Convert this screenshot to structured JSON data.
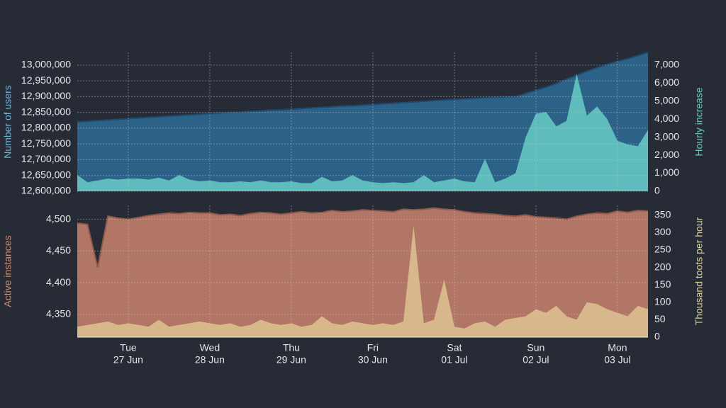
{
  "chart_data": [
    {
      "type": "area",
      "x": [
        0.375,
        0.5,
        0.625,
        0.75,
        0.875,
        1,
        1.125,
        1.25,
        1.375,
        1.5,
        1.625,
        1.75,
        1.875,
        2,
        2.125,
        2.25,
        2.375,
        2.5,
        2.625,
        2.75,
        2.875,
        3,
        3.125,
        3.25,
        3.375,
        3.5,
        3.625,
        3.75,
        3.875,
        4,
        4.125,
        4.25,
        4.375,
        4.5,
        4.625,
        4.75,
        4.875,
        5,
        5.125,
        5.25,
        5.375,
        5.5,
        5.625,
        5.75,
        5.875,
        6,
        6.125,
        6.25,
        6.375,
        6.5,
        6.625,
        6.75,
        6.875,
        7,
        7.125,
        7.25,
        7.375
      ],
      "xlim": [
        0.375,
        7.375
      ],
      "xticks": [
        1,
        2,
        3,
        4,
        5,
        6,
        7
      ],
      "ylim": [
        12600000,
        13040000
      ],
      "yticks": [
        {
          "value": 12600000,
          "label": "12,600,000"
        },
        {
          "value": 12650000,
          "label": "12,650,000"
        },
        {
          "value": 12700000,
          "label": "12,700,000"
        },
        {
          "value": 12750000,
          "label": "12,750,000"
        },
        {
          "value": 12800000,
          "label": "12,800,000"
        },
        {
          "value": 12850000,
          "label": "12,850,000"
        },
        {
          "value": 12900000,
          "label": "12,900,000"
        },
        {
          "value": 12950000,
          "label": "12,950,000"
        },
        {
          "value": 13000000,
          "label": "13,000,000"
        }
      ],
      "y2lim": [
        0,
        7700
      ],
      "y2ticks": [
        0,
        {
          "value": 1000,
          "label": "1,000"
        },
        {
          "value": 2000,
          "label": "2,000"
        },
        {
          "value": 3000,
          "label": "3,000"
        },
        {
          "value": 4000,
          "label": "4,000"
        },
        {
          "value": 5000,
          "label": "5,000"
        },
        {
          "value": 6000,
          "label": "6,000"
        },
        {
          "value": 7000,
          "label": "7,000"
        }
      ],
      "ylabel": "Number of users",
      "y2label": "Hourly increase",
      "ylabel_color": "#6fb6d6",
      "y2label_color": "#63c6b6",
      "grid": true,
      "series": [
        {
          "name": "Number of users",
          "color": "#2c6188",
          "line_color": "#1f4a6d",
          "values": [
            12820000,
            12822000,
            12824000,
            12826000,
            12828000,
            12830000,
            12832000,
            12834000,
            12836000,
            12838000,
            12840000,
            12842000,
            12844000,
            12846000,
            12848000,
            12850000,
            12851000,
            12853000,
            12855000,
            12857000,
            12858000,
            12860000,
            12862000,
            12864000,
            12866000,
            12868000,
            12870000,
            12871000,
            12873000,
            12875000,
            12877000,
            12879000,
            12881000,
            12883000,
            12885000,
            12887000,
            12889000,
            12891000,
            12893000,
            12895000,
            12897000,
            12898000,
            12899000,
            12900000,
            12910000,
            12920000,
            12930000,
            12942000,
            12955000,
            12968000,
            12980000,
            12992000,
            13002000,
            13012000,
            13020000,
            13030000,
            13040000
          ]
        },
        {
          "name": "Hourly increase",
          "color": "#5fbcbc",
          "axis": "y2",
          "values": [
            900,
            500,
            600,
            700,
            650,
            700,
            700,
            650,
            750,
            600,
            900,
            650,
            550,
            600,
            500,
            500,
            550,
            500,
            600,
            500,
            500,
            550,
            450,
            450,
            800,
            550,
            600,
            900,
            600,
            500,
            450,
            500,
            450,
            500,
            900,
            500,
            600,
            700,
            550,
            500,
            1800,
            500,
            700,
            1000,
            3000,
            4300,
            4400,
            3600,
            3900,
            6500,
            4200,
            4700,
            4000,
            2800,
            2600,
            2500,
            3400
          ]
        }
      ]
    },
    {
      "type": "area",
      "x": [
        0.375,
        0.5,
        0.625,
        0.75,
        0.875,
        1,
        1.125,
        1.25,
        1.375,
        1.5,
        1.625,
        1.75,
        1.875,
        2,
        2.125,
        2.25,
        2.375,
        2.5,
        2.625,
        2.75,
        2.875,
        3,
        3.125,
        3.25,
        3.375,
        3.5,
        3.625,
        3.75,
        3.875,
        4,
        4.125,
        4.25,
        4.375,
        4.5,
        4.625,
        4.75,
        4.875,
        5,
        5.125,
        5.25,
        5.375,
        5.5,
        5.625,
        5.75,
        5.875,
        6,
        6.125,
        6.25,
        6.375,
        6.5,
        6.625,
        6.75,
        6.875,
        7,
        7.125,
        7.25,
        7.375
      ],
      "xlim": [
        0.375,
        7.375
      ],
      "xticks": [
        {
          "value": 1,
          "label": "Tue",
          "date": "27 Jun"
        },
        {
          "value": 2,
          "label": "Wed",
          "date": "28 Jun"
        },
        {
          "value": 3,
          "label": "Thu",
          "date": "29 Jun"
        },
        {
          "value": 4,
          "label": "Fri",
          "date": "30 Jun"
        },
        {
          "value": 5,
          "label": "Sat",
          "date": "01 Jul"
        },
        {
          "value": 6,
          "label": "Sun",
          "date": "02 Jul"
        },
        {
          "value": 7,
          "label": "Mon",
          "date": "03 Jul"
        }
      ],
      "ylim": [
        4314,
        4522
      ],
      "yticks": [
        {
          "value": 4350,
          "label": "4,350"
        },
        {
          "value": 4400,
          "label": "4,400"
        },
        {
          "value": 4450,
          "label": "4,450"
        },
        {
          "value": 4500,
          "label": "4,500"
        }
      ],
      "y2lim": [
        0,
        378
      ],
      "y2ticks": [
        0,
        50,
        100,
        150,
        200,
        250,
        300,
        350
      ],
      "ylabel": "Active instances",
      "y2label": "Thousand toots per hour",
      "ylabel_color": "#d18c70",
      "y2label_color": "#d9cf90",
      "grid": true,
      "series": [
        {
          "name": "Active instances",
          "color": "#b27666",
          "line_color": "#8f5a4d",
          "values": [
            4494,
            4492,
            4424,
            4505,
            4502,
            4500,
            4503,
            4506,
            4508,
            4510,
            4509,
            4511,
            4510,
            4510,
            4507,
            4508,
            4506,
            4509,
            4511,
            4510,
            4508,
            4510,
            4512,
            4510,
            4511,
            4514,
            4512,
            4513,
            4515,
            4514,
            4513,
            4512,
            4516,
            4515,
            4516,
            4518,
            4516,
            4515,
            4512,
            4510,
            4509,
            4508,
            4506,
            4505,
            4507,
            4504,
            4503,
            4502,
            4500,
            4505,
            4508,
            4510,
            4509,
            4513,
            4511,
            4514,
            4513
          ]
        },
        {
          "name": "Thousand toots per hour",
          "color": "#d8b88a",
          "axis": "y2",
          "values": [
            30,
            35,
            40,
            45,
            35,
            40,
            35,
            30,
            50,
            30,
            35,
            40,
            45,
            40,
            35,
            40,
            30,
            35,
            50,
            40,
            35,
            40,
            30,
            35,
            60,
            40,
            35,
            45,
            40,
            35,
            40,
            35,
            45,
            320,
            40,
            50,
            165,
            30,
            25,
            40,
            45,
            30,
            50,
            55,
            60,
            80,
            70,
            90,
            60,
            50,
            100,
            95,
            80,
            70,
            60,
            90,
            80
          ]
        }
      ]
    }
  ]
}
